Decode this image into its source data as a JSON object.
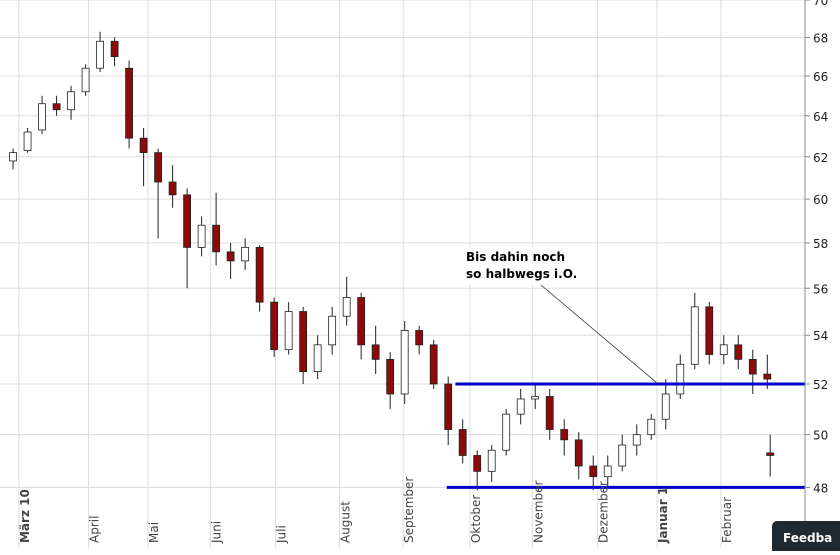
{
  "chart_data": {
    "type": "candlestick",
    "log_scale": true,
    "grid": true,
    "up_color": "#ffffff",
    "down_color": "#8b0a0a",
    "wick_color": "#222222",
    "grid_color": "#dddddd",
    "ylim": [
      45.8,
      70
    ],
    "yticks": [
      48,
      50,
      52,
      54,
      56,
      58,
      60,
      62,
      64,
      66,
      68,
      70
    ],
    "xlim": [
      -0.9,
      54.6
    ],
    "xticks": [
      {
        "value": 0.4,
        "label": "März 10",
        "bold": true
      },
      {
        "value": 5.2,
        "label": "April"
      },
      {
        "value": 9.3,
        "label": "Mai"
      },
      {
        "value": 13.6,
        "label": "Juni"
      },
      {
        "value": 18.1,
        "label": "Juli"
      },
      {
        "value": 22.5,
        "label": "August"
      },
      {
        "value": 26.9,
        "label": "September"
      },
      {
        "value": 31.5,
        "label": "Oktober"
      },
      {
        "value": 35.8,
        "label": "November"
      },
      {
        "value": 40.3,
        "label": "Dezember"
      },
      {
        "value": 44.4,
        "label": "Januar 1",
        "bold": true
      },
      {
        "value": 48.8,
        "label": "Februar"
      }
    ],
    "candles": {
      "x": [
        0,
        1,
        2,
        3,
        4,
        5,
        6,
        7,
        8,
        9,
        10,
        11,
        12,
        13,
        14,
        15,
        16,
        17,
        18,
        19,
        20,
        21,
        22,
        23,
        24,
        25,
        26,
        27,
        28,
        29,
        30,
        31,
        32,
        33,
        34,
        35,
        36,
        37,
        38,
        39,
        40,
        41,
        42,
        43,
        44,
        45,
        46,
        47,
        48,
        49,
        50,
        51,
        52,
        52.2
      ],
      "open": [
        61.8,
        62.3,
        63.3,
        64.6,
        64.3,
        65.2,
        66.4,
        67.8,
        66.4,
        62.9,
        62.2,
        60.8,
        60.2,
        57.8,
        58.8,
        57.6,
        57.2,
        57.8,
        55.4,
        53.4,
        55.0,
        52.5,
        53.6,
        54.8,
        55.6,
        53.6,
        53.0,
        51.6,
        54.2,
        53.6,
        52.0,
        50.2,
        49.2,
        48.6,
        49.4,
        50.8,
        51.4,
        51.5,
        50.2,
        49.8,
        48.8,
        48.4,
        48.8,
        49.6,
        50.0,
        50.6,
        51.6,
        52.8,
        55.2,
        53.2,
        53.6,
        53.0,
        52.4,
        49.3
      ],
      "high": [
        62.4,
        63.4,
        65.0,
        65.0,
        65.5,
        66.6,
        68.3,
        68.0,
        66.8,
        63.4,
        62.4,
        61.6,
        60.5,
        59.2,
        60.3,
        58.0,
        58.2,
        57.9,
        55.6,
        55.4,
        55.2,
        54.0,
        55.2,
        56.5,
        55.8,
        54.4,
        53.3,
        54.6,
        54.4,
        53.8,
        52.3,
        50.6,
        49.4,
        49.6,
        51.0,
        51.8,
        52.0,
        51.8,
        50.6,
        50.1,
        49.2,
        49.2,
        50.0,
        50.4,
        50.8,
        52.2,
        53.2,
        55.8,
        55.4,
        54.0,
        54.0,
        53.4,
        53.2,
        50.0
      ],
      "low": [
        61.4,
        62.2,
        63.1,
        64.0,
        63.8,
        65.0,
        66.2,
        66.5,
        62.4,
        60.6,
        58.2,
        59.6,
        56.0,
        57.4,
        57.0,
        56.4,
        56.8,
        55.0,
        53.1,
        53.2,
        52.0,
        52.2,
        53.2,
        54.4,
        53.0,
        52.4,
        51.0,
        51.2,
        53.2,
        51.8,
        49.6,
        48.9,
        47.9,
        48.2,
        49.2,
        50.4,
        51.0,
        49.8,
        49.2,
        48.3,
        47.9,
        48.0,
        48.6,
        49.2,
        49.8,
        50.2,
        51.4,
        52.6,
        52.8,
        52.8,
        52.6,
        51.6,
        51.8,
        48.4
      ],
      "close": [
        62.2,
        63.2,
        64.6,
        64.3,
        65.2,
        66.4,
        67.8,
        67.0,
        62.9,
        62.2,
        60.8,
        60.2,
        57.8,
        58.8,
        57.6,
        57.2,
        57.8,
        55.4,
        53.4,
        55.0,
        52.5,
        53.6,
        54.8,
        55.6,
        53.6,
        53.0,
        51.6,
        54.2,
        53.6,
        52.0,
        50.2,
        49.2,
        48.6,
        49.4,
        50.8,
        51.4,
        51.5,
        50.2,
        49.8,
        48.8,
        48.4,
        48.8,
        49.6,
        50.0,
        50.6,
        51.6,
        52.8,
        55.2,
        53.2,
        53.6,
        53.0,
        52.4,
        52.2,
        49.2
      ]
    },
    "hlines": [
      {
        "value": 52,
        "x": [
          30.5,
          54.6
        ],
        "color": "#0000cc"
      },
      {
        "value": 48,
        "x": [
          29.9,
          54.6
        ],
        "color": "#0000cc"
      }
    ],
    "annotation": [
      "Bis dahin noch",
      "so halbwegs i.O."
    ],
    "feedback_button": "Feedba"
  }
}
